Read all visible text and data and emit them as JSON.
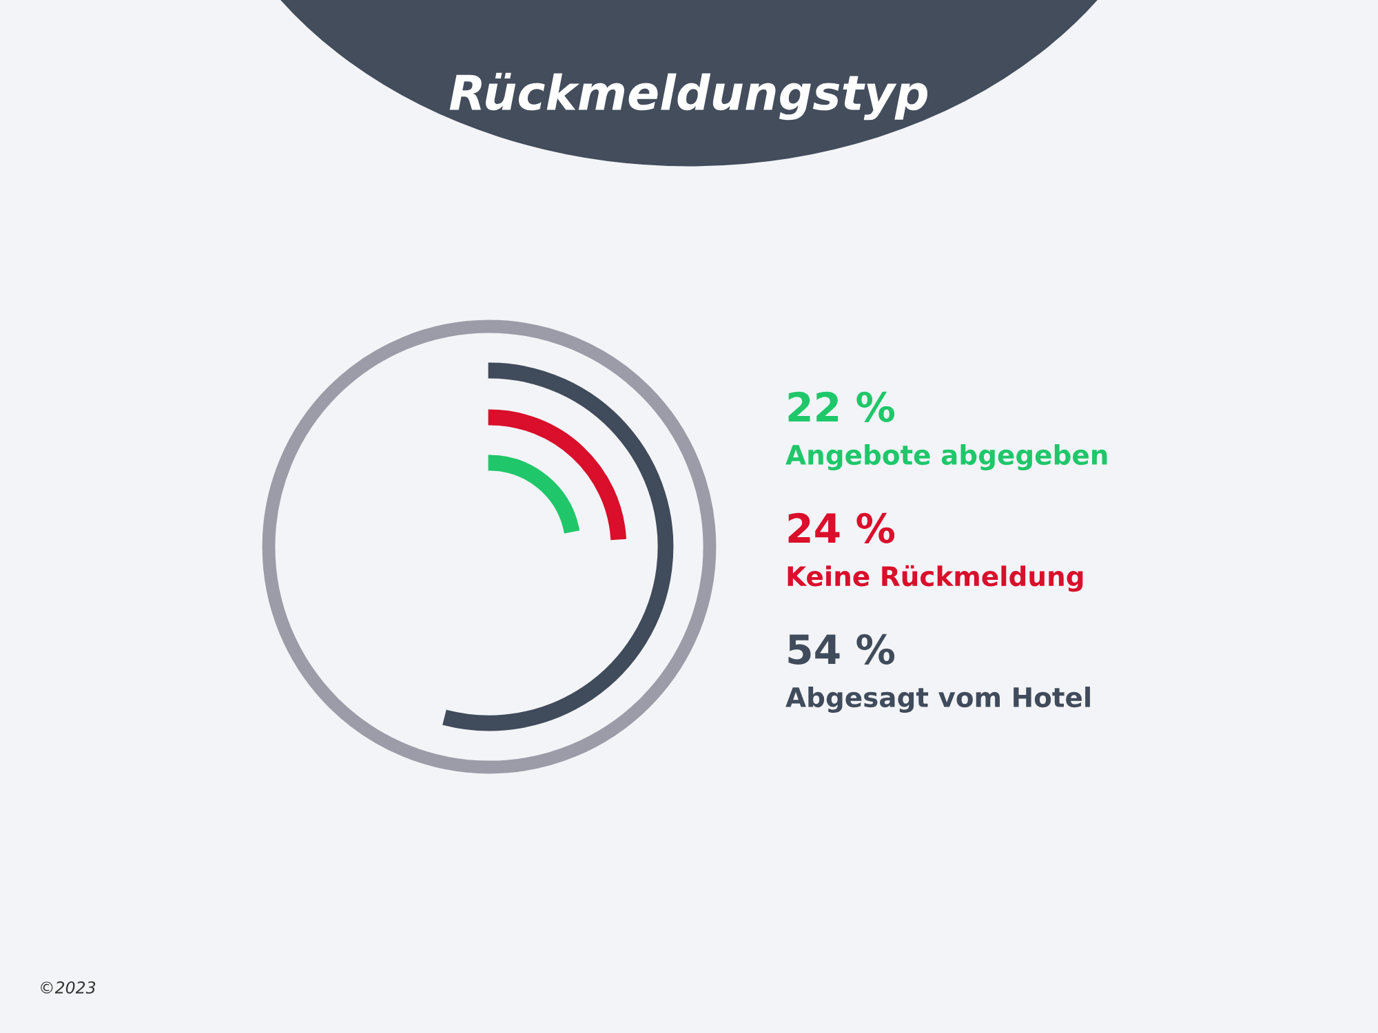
{
  "chart_data": {
    "type": "other",
    "title": "Rückmeldungstyp",
    "categories": [
      "Angebote abgegeben",
      "Keine Rückmeldung",
      "Abgesagt vom Hotel"
    ],
    "values": [
      22,
      24,
      54
    ],
    "value_labels": [
      "22 %",
      "24 %",
      "54 %"
    ],
    "colors": [
      "#1fc76a",
      "#d90f2b",
      "#404b5b"
    ],
    "annotations": [
      "©2023"
    ]
  }
}
